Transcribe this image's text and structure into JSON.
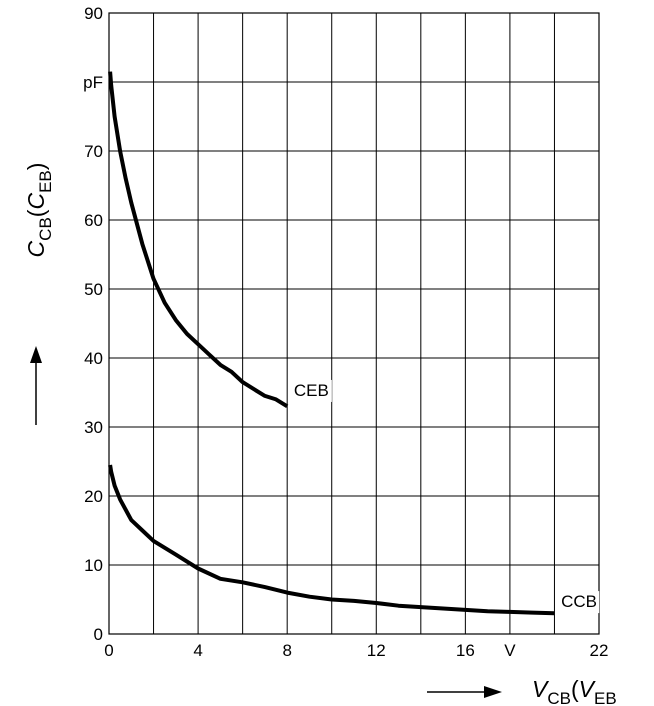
{
  "chart_data": {
    "type": "line",
    "xlim": [
      0,
      22
    ],
    "ylim": [
      0,
      90
    ],
    "x_ticks": [
      {
        "value": 0,
        "label": "0"
      },
      {
        "value": 4,
        "label": "4"
      },
      {
        "value": 8,
        "label": "8"
      },
      {
        "value": 12,
        "label": "12"
      },
      {
        "value": 16,
        "label": "16"
      },
      {
        "value": 18,
        "label": "V"
      },
      {
        "value": 22,
        "label": "22"
      }
    ],
    "y_ticks": [
      {
        "value": 0,
        "label": "0"
      },
      {
        "value": 10,
        "label": "10"
      },
      {
        "value": 20,
        "label": "20"
      },
      {
        "value": 30,
        "label": "30"
      },
      {
        "value": 40,
        "label": "40"
      },
      {
        "value": 50,
        "label": "50"
      },
      {
        "value": 60,
        "label": "60"
      },
      {
        "value": 70,
        "label": "70"
      },
      {
        "value": 80,
        "label": "pF"
      },
      {
        "value": 90,
        "label": "90"
      }
    ],
    "grid": true,
    "xlabel": {
      "main": "V",
      "sub1": "CB",
      "paren": "(",
      "main2": "V",
      "sub2": "EB"
    },
    "ylabel": {
      "main": "C",
      "sub1": "CB",
      "paren": "(",
      "main2": "C",
      "sub2": "EB",
      "close": ")"
    },
    "series": [
      {
        "name": "CEB",
        "x": [
          0.05,
          0.1,
          0.25,
          0.5,
          0.75,
          1,
          1.5,
          2,
          2.5,
          3,
          3.5,
          4,
          4.5,
          5,
          5.5,
          6,
          6.5,
          7,
          7.5,
          8
        ],
        "y": [
          81.5,
          79.5,
          75,
          70,
          66,
          62.5,
          56.5,
          51.5,
          48,
          45.5,
          43.5,
          42,
          40.5,
          39,
          38,
          36.5,
          35.5,
          34.5,
          34,
          33
        ]
      },
      {
        "name": "CCB",
        "x": [
          0.05,
          0.1,
          0.25,
          0.5,
          1,
          1.5,
          2,
          3,
          4,
          5,
          6,
          7,
          8,
          9,
          10,
          11,
          12,
          13,
          14,
          15,
          16,
          17,
          18,
          19,
          20
        ],
        "y": [
          24.5,
          23.5,
          21.5,
          19.5,
          16.5,
          15,
          13.5,
          11.5,
          9.5,
          8,
          7.5,
          6.8,
          6,
          5.4,
          5,
          4.8,
          4.5,
          4.1,
          3.9,
          3.7,
          3.5,
          3.3,
          3.2,
          3.1,
          3
        ]
      }
    ],
    "annotations": [
      {
        "series": "CEB",
        "text": "CEB",
        "x": 8.3,
        "y": 34.5
      },
      {
        "series": "CCB",
        "text": "CCB",
        "x": 20.3,
        "y": 3.9
      }
    ],
    "colors": {
      "line": "#000000",
      "grid": "#000000",
      "background": "#ffffff"
    }
  }
}
